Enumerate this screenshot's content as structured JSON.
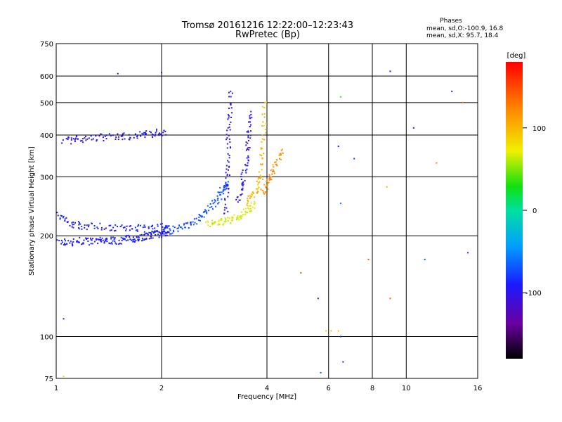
{
  "chart_data": {
    "type": "scatter",
    "title": "Tromsø 20161216 12:22:00–12:23:43",
    "subtitle": "RwPretec (Bp)",
    "xlabel": "Frequency [MHz]",
    "ylabel": "Stationary phase Virtual Height [km]",
    "x_scale": "log",
    "y_scale": "log",
    "xlim": [
      1,
      16
    ],
    "ylim": [
      75,
      750
    ],
    "grid": true,
    "x_ticks": [
      {
        "value": 1,
        "label": "1"
      },
      {
        "value": 2,
        "label": "2"
      },
      {
        "value": 4,
        "label": "4"
      },
      {
        "value": 6,
        "label": "6"
      },
      {
        "value": 8,
        "label": "8"
      },
      {
        "value": 10,
        "label": "10"
      },
      {
        "value": 16,
        "label": "16"
      }
    ],
    "y_ticks": [
      {
        "value": 75,
        "label": "75"
      },
      {
        "value": 100,
        "label": "100"
      },
      {
        "value": 200,
        "label": "200"
      },
      {
        "value": 300,
        "label": "300"
      },
      {
        "value": 400,
        "label": "400"
      },
      {
        "value": 500,
        "label": "500"
      },
      {
        "value": 600,
        "label": "600"
      },
      {
        "value": 750,
        "label": "750"
      }
    ],
    "phase_stats": {
      "heading": "Phases",
      "line_o": "mean, sd,O:-100.9, 16.8",
      "line_x": "mean, sd,X:  95.7, 18.4"
    },
    "colorbar": {
      "label": "[deg]",
      "range": [
        -180,
        180
      ],
      "ticks": [
        {
          "value": 100,
          "label": "100"
        },
        {
          "value": 0,
          "label": "0"
        },
        {
          "value": -100,
          "label": "-100"
        }
      ]
    },
    "traces": [
      {
        "name": "",
        "x": [
          1.0,
          1.1,
          1.2,
          1.3,
          1.4,
          1.5,
          1.6,
          1.7,
          1.8,
          1.9,
          2.0,
          2.1
        ],
        "y": [
          192,
          191,
          193,
          192,
          194,
          193,
          196,
          197,
          199,
          201,
          203,
          205
        ],
        "phase": -100
      },
      {
        "name": "",
        "x": [
          1.05,
          1.15,
          1.3,
          1.5,
          1.7,
          1.9,
          2.05
        ],
        "y": [
          384,
          388,
          392,
          396,
          398,
          404,
          410
        ],
        "phase": -105
      },
      {
        "name": "",
        "x": [
          1.0,
          1.1,
          1.2,
          1.4,
          1.6,
          1.8,
          2.0,
          2.1
        ],
        "y": [
          230,
          218,
          214,
          212,
          211,
          210,
          212,
          214
        ],
        "phase": -95
      },
      {
        "name": "",
        "x": [
          2.1,
          2.3,
          2.5,
          2.7,
          2.9,
          3.0,
          3.1
        ],
        "y": [
          207,
          212,
          222,
          238,
          258,
          275,
          290
        ],
        "phase": -75
      },
      {
        "name": "",
        "x": [
          3.05,
          3.08,
          3.1,
          3.12,
          3.15
        ],
        "y": [
          230,
          290,
          360,
          440,
          540
        ],
        "phase": -110
      },
      {
        "name": "",
        "x": [
          3.3,
          3.4,
          3.5,
          3.55,
          3.6
        ],
        "y": [
          250,
          290,
          340,
          400,
          470
        ],
        "phase": -110
      },
      {
        "name": "",
        "x": [
          2.7,
          2.9,
          3.1,
          3.3,
          3.5,
          3.7
        ],
        "y": [
          216,
          218,
          222,
          228,
          238,
          250
        ],
        "phase": 70
      },
      {
        "name": "",
        "x": [
          3.5,
          3.7,
          3.85,
          3.9,
          3.95
        ],
        "y": [
          250,
          270,
          300,
          380,
          500
        ],
        "phase": 100
      },
      {
        "name": "",
        "x": [
          3.9,
          4.05,
          4.2,
          4.4
        ],
        "y": [
          270,
          290,
          320,
          360
        ],
        "phase": 120
      }
    ],
    "scattered_points": [
      {
        "x": 1.05,
        "y": 113,
        "phase": -115
      },
      {
        "x": 1.5,
        "y": 610,
        "phase": -110
      },
      {
        "x": 2.0,
        "y": 614,
        "phase": -110
      },
      {
        "x": 5.9,
        "y": 104,
        "phase": 85
      },
      {
        "x": 6.1,
        "y": 104,
        "phase": 100
      },
      {
        "x": 6.4,
        "y": 104,
        "phase": 95
      },
      {
        "x": 6.5,
        "y": 100,
        "phase": -100
      },
      {
        "x": 6.6,
        "y": 84,
        "phase": -100
      },
      {
        "x": 6.5,
        "y": 520,
        "phase": 40
      },
      {
        "x": 6.5,
        "y": 250,
        "phase": -60
      },
      {
        "x": 6.4,
        "y": 370,
        "phase": -120
      },
      {
        "x": 7.1,
        "y": 340,
        "phase": -90
      },
      {
        "x": 9.0,
        "y": 620,
        "phase": -110
      },
      {
        "x": 8.8,
        "y": 280,
        "phase": 100
      },
      {
        "x": 10.5,
        "y": 420,
        "phase": -110
      },
      {
        "x": 13.5,
        "y": 540,
        "phase": -130
      },
      {
        "x": 14.5,
        "y": 500,
        "phase": 140
      },
      {
        "x": 12.2,
        "y": 330,
        "phase": 120
      },
      {
        "x": 11.3,
        "y": 170,
        "phase": -80
      },
      {
        "x": 15.0,
        "y": 178,
        "phase": -90
      },
      {
        "x": 7.8,
        "y": 170,
        "phase": 150
      },
      {
        "x": 9.0,
        "y": 130,
        "phase": 140
      },
      {
        "x": 5.6,
        "y": 130,
        "phase": -100
      },
      {
        "x": 5.0,
        "y": 155,
        "phase": 150
      },
      {
        "x": 5.7,
        "y": 78,
        "phase": -70
      },
      {
        "x": 1.05,
        "y": 76,
        "phase": 60
      }
    ]
  }
}
